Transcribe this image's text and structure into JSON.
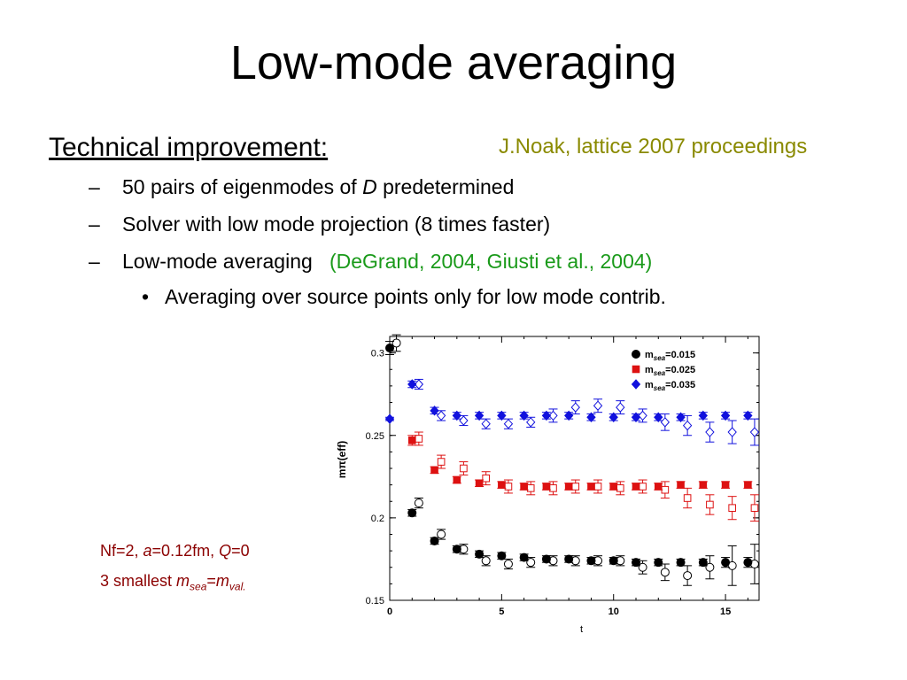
{
  "slide": {
    "title": "Low-mode averaging",
    "heading": "Technical improvement:",
    "reference": "J.Noak, lattice 2007 proceedings",
    "item1_pre": "50 pairs of eigenmodes of ",
    "item1_var": "D",
    "item1_post": " predetermined",
    "item2": "Solver with low mode projection (8 times faster)",
    "item3": "Low-mode averaging",
    "item3_cite": "(DeGrand, 2004, Giusti et al., 2004)",
    "subitem": "Averaging over source points only for low mode contrib.",
    "dash": "–",
    "bullet": "•",
    "note1_a": "Nf=2, ",
    "note1_a_var": "a",
    "note1_b": "=0.12fm, ",
    "note1_q_var": "Q",
    "note1_c": "=0",
    "note2_a": "3 smallest ",
    "note2_m1": "m",
    "note2_s1": "sea",
    "note2_eq": "=",
    "note2_m2": "m",
    "note2_s2": "val."
  },
  "chart_data": {
    "type": "scatter",
    "xlabel": "t",
    "ylabel": "mπ(eff)",
    "xlim": [
      0,
      16.5
    ],
    "ylim": [
      0.15,
      0.31
    ],
    "xticks": [
      0,
      5,
      10,
      15
    ],
    "yticks": [
      0.15,
      0.2,
      0.25,
      0.3
    ],
    "legend_position": "top-right",
    "series": [
      {
        "name": "m_sea=0.015",
        "color": "#000000",
        "shape": "circle",
        "filled": {
          "x": [
            0,
            1,
            2,
            3,
            4,
            5,
            6,
            7,
            8,
            9,
            10,
            11,
            12,
            13,
            14,
            15,
            16
          ],
          "y": [
            0.303,
            0.203,
            0.186,
            0.181,
            0.178,
            0.177,
            0.176,
            0.175,
            0.175,
            0.174,
            0.174,
            0.173,
            0.173,
            0.173,
            0.173,
            0.173,
            0.173
          ],
          "err": [
            0.004,
            0.002,
            0.002,
            0.002,
            0.002,
            0.002,
            0.002,
            0.002,
            0.002,
            0.002,
            0.002,
            0.002,
            0.002,
            0.002,
            0.002,
            0.003,
            0.003
          ]
        },
        "open": {
          "x": [
            0.3,
            1.3,
            2.3,
            3.3,
            4.3,
            5.3,
            6.3,
            7.3,
            8.3,
            9.3,
            10.3,
            11.3,
            12.3,
            13.3,
            14.3,
            15.3,
            16.3
          ],
          "y": [
            0.306,
            0.209,
            0.19,
            0.181,
            0.174,
            0.172,
            0.173,
            0.174,
            0.174,
            0.174,
            0.174,
            0.17,
            0.167,
            0.165,
            0.17,
            0.171,
            0.172
          ],
          "err": [
            0.005,
            0.003,
            0.003,
            0.003,
            0.003,
            0.003,
            0.003,
            0.003,
            0.003,
            0.003,
            0.003,
            0.004,
            0.005,
            0.006,
            0.007,
            0.012,
            0.012
          ]
        }
      },
      {
        "name": "m_sea=0.025",
        "color": "#dd1111",
        "shape": "square",
        "filled": {
          "x": [
            1,
            2,
            3,
            4,
            5,
            6,
            7,
            8,
            9,
            10,
            11,
            12,
            13,
            14,
            15,
            16
          ],
          "y": [
            0.247,
            0.229,
            0.223,
            0.221,
            0.22,
            0.219,
            0.219,
            0.219,
            0.219,
            0.219,
            0.219,
            0.219,
            0.22,
            0.22,
            0.22,
            0.22
          ],
          "err": [
            0.003,
            0.002,
            0.002,
            0.002,
            0.002,
            0.002,
            0.002,
            0.002,
            0.002,
            0.002,
            0.002,
            0.002,
            0.002,
            0.002,
            0.002,
            0.002
          ]
        },
        "open": {
          "x": [
            1.3,
            2.3,
            3.3,
            4.3,
            5.3,
            6.3,
            7.3,
            8.3,
            9.3,
            10.3,
            11.3,
            12.3,
            13.3,
            14.3,
            15.3,
            16.3
          ],
          "y": [
            0.248,
            0.234,
            0.23,
            0.224,
            0.219,
            0.218,
            0.218,
            0.219,
            0.219,
            0.218,
            0.219,
            0.217,
            0.212,
            0.208,
            0.206,
            0.206
          ],
          "err": [
            0.004,
            0.004,
            0.004,
            0.004,
            0.004,
            0.004,
            0.004,
            0.004,
            0.004,
            0.004,
            0.004,
            0.005,
            0.006,
            0.006,
            0.007,
            0.008
          ]
        }
      },
      {
        "name": "m_sea=0.035",
        "color": "#1111dd",
        "shape": "diamond",
        "filled": {
          "x": [
            0,
            1,
            2,
            3,
            4,
            5,
            6,
            7,
            8,
            9,
            10,
            11,
            12,
            13,
            14,
            15,
            16
          ],
          "y": [
            0.26,
            0.281,
            0.265,
            0.262,
            0.262,
            0.262,
            0.262,
            0.262,
            0.262,
            0.261,
            0.261,
            0.261,
            0.261,
            0.261,
            0.262,
            0.262,
            0.262
          ],
          "err": [
            0.001,
            0.002,
            0.002,
            0.002,
            0.002,
            0.002,
            0.002,
            0.002,
            0.002,
            0.002,
            0.002,
            0.002,
            0.002,
            0.002,
            0.002,
            0.002,
            0.002
          ]
        },
        "open": {
          "x": [
            1.3,
            2.3,
            3.3,
            4.3,
            5.3,
            6.3,
            7.3,
            8.3,
            9.3,
            10.3,
            11.3,
            12.3,
            13.3,
            14.3,
            15.3,
            16.3
          ],
          "y": [
            0.281,
            0.262,
            0.259,
            0.257,
            0.257,
            0.258,
            0.262,
            0.267,
            0.268,
            0.267,
            0.262,
            0.258,
            0.256,
            0.252,
            0.252,
            0.252
          ],
          "err": [
            0.003,
            0.003,
            0.003,
            0.003,
            0.003,
            0.003,
            0.004,
            0.004,
            0.004,
            0.004,
            0.004,
            0.005,
            0.006,
            0.006,
            0.007,
            0.008
          ]
        }
      }
    ]
  }
}
